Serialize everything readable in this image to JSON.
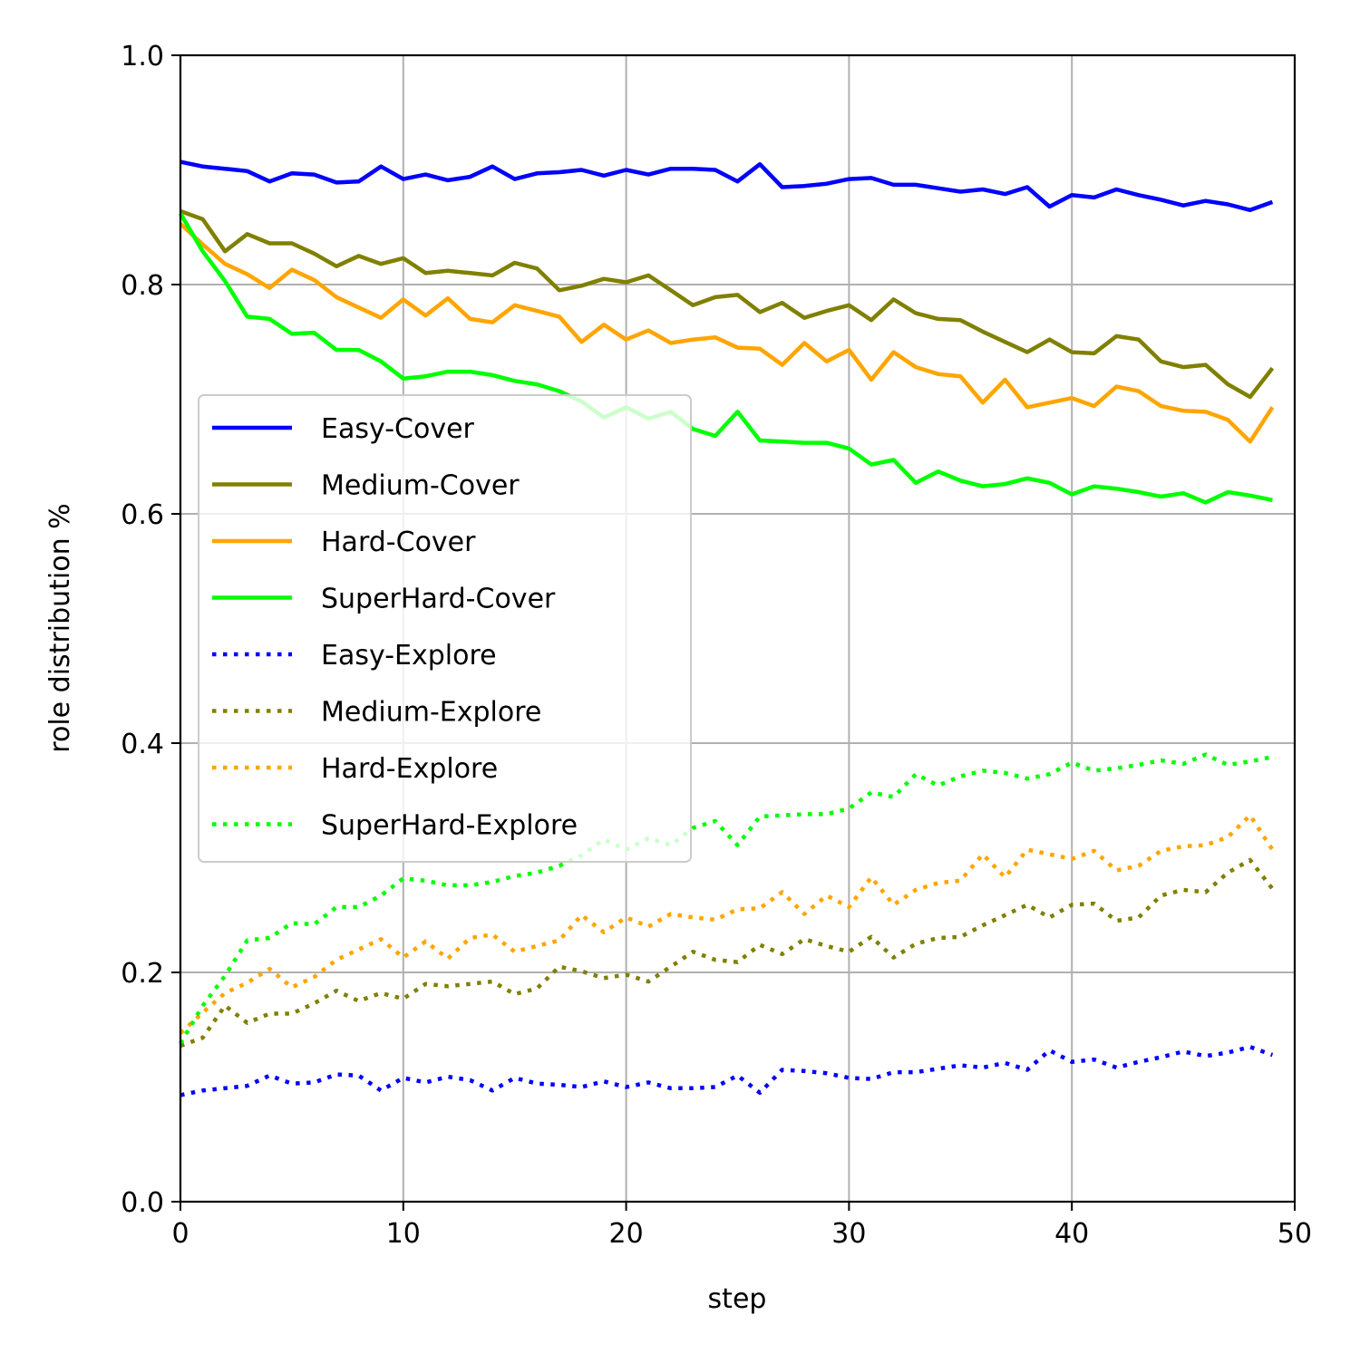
{
  "chart_data": {
    "type": "line",
    "title": "",
    "xlabel": "step",
    "ylabel": "role distribution %",
    "xlim": [
      0,
      50
    ],
    "ylim": [
      0.0,
      1.0
    ],
    "xticks": [
      "0",
      "10",
      "20",
      "30",
      "40",
      "50"
    ],
    "yticks": [
      "0.0",
      "0.2",
      "0.4",
      "0.6",
      "0.8",
      "1.0"
    ],
    "grid": true,
    "legend_position": "center-left",
    "x": [
      0,
      1,
      2,
      3,
      4,
      5,
      6,
      7,
      8,
      9,
      10,
      11,
      12,
      13,
      14,
      15,
      16,
      17,
      18,
      19,
      20,
      21,
      22,
      23,
      24,
      25,
      26,
      27,
      28,
      29,
      30,
      31,
      32,
      33,
      34,
      35,
      36,
      37,
      38,
      39,
      40,
      41,
      42,
      43,
      44,
      45,
      46,
      47,
      48,
      49
    ],
    "series": [
      {
        "name": "Easy-Cover",
        "color": "#0000ff",
        "style": "solid",
        "values": [
          0.907,
          0.903,
          0.901,
          0.899,
          0.89,
          0.897,
          0.896,
          0.889,
          0.89,
          0.903,
          0.892,
          0.896,
          0.891,
          0.894,
          0.903,
          0.892,
          0.897,
          0.898,
          0.9,
          0.895,
          0.9,
          0.896,
          0.901,
          0.901,
          0.9,
          0.89,
          0.905,
          0.885,
          0.886,
          0.888,
          0.892,
          0.893,
          0.887,
          0.887,
          0.884,
          0.881,
          0.883,
          0.879,
          0.885,
          0.868,
          0.878,
          0.876,
          0.883,
          0.878,
          0.874,
          0.869,
          0.873,
          0.87,
          0.865,
          0.872
        ]
      },
      {
        "name": "Medium-Cover",
        "color": "#808000",
        "style": "solid",
        "values": [
          0.864,
          0.857,
          0.829,
          0.844,
          0.836,
          0.836,
          0.827,
          0.816,
          0.825,
          0.818,
          0.823,
          0.81,
          0.812,
          0.81,
          0.808,
          0.819,
          0.814,
          0.795,
          0.799,
          0.805,
          0.802,
          0.808,
          0.795,
          0.782,
          0.789,
          0.791,
          0.776,
          0.784,
          0.771,
          0.777,
          0.782,
          0.769,
          0.787,
          0.775,
          0.77,
          0.769,
          0.759,
          0.75,
          0.741,
          0.752,
          0.741,
          0.74,
          0.755,
          0.752,
          0.733,
          0.728,
          0.73,
          0.713,
          0.702,
          0.727
        ]
      },
      {
        "name": "Hard-Cover",
        "color": "#ffa500",
        "style": "solid",
        "values": [
          0.853,
          0.835,
          0.818,
          0.809,
          0.797,
          0.813,
          0.804,
          0.789,
          0.78,
          0.771,
          0.787,
          0.773,
          0.788,
          0.77,
          0.767,
          0.782,
          0.777,
          0.772,
          0.75,
          0.765,
          0.752,
          0.76,
          0.749,
          0.752,
          0.754,
          0.745,
          0.744,
          0.73,
          0.749,
          0.733,
          0.743,
          0.717,
          0.741,
          0.728,
          0.722,
          0.72,
          0.697,
          0.717,
          0.693,
          0.697,
          0.701,
          0.694,
          0.711,
          0.707,
          0.694,
          0.69,
          0.689,
          0.682,
          0.663,
          0.693
        ]
      },
      {
        "name": "SuperHard-Cover",
        "color": "#00ff00",
        "style": "solid",
        "values": [
          0.862,
          0.829,
          0.803,
          0.772,
          0.77,
          0.757,
          0.758,
          0.743,
          0.743,
          0.733,
          0.718,
          0.72,
          0.724,
          0.724,
          0.721,
          0.716,
          0.713,
          0.707,
          0.698,
          0.684,
          0.693,
          0.683,
          0.689,
          0.674,
          0.668,
          0.689,
          0.664,
          0.663,
          0.662,
          0.662,
          0.657,
          0.643,
          0.647,
          0.627,
          0.637,
          0.629,
          0.624,
          0.626,
          0.631,
          0.627,
          0.617,
          0.624,
          0.622,
          0.619,
          0.615,
          0.618,
          0.61,
          0.619,
          0.616,
          0.612
        ]
      },
      {
        "name": "Easy-Explore",
        "color": "#0000ff",
        "style": "dotted",
        "values": [
          0.093,
          0.097,
          0.099,
          0.101,
          0.11,
          0.103,
          0.104,
          0.111,
          0.11,
          0.097,
          0.108,
          0.104,
          0.109,
          0.106,
          0.097,
          0.108,
          0.103,
          0.102,
          0.1,
          0.105,
          0.1,
          0.104,
          0.099,
          0.099,
          0.1,
          0.11,
          0.095,
          0.115,
          0.114,
          0.112,
          0.108,
          0.107,
          0.113,
          0.113,
          0.116,
          0.119,
          0.117,
          0.121,
          0.115,
          0.132,
          0.122,
          0.124,
          0.117,
          0.122,
          0.126,
          0.131,
          0.127,
          0.13,
          0.135,
          0.128
        ]
      },
      {
        "name": "Medium-Explore",
        "color": "#808000",
        "style": "dotted",
        "values": [
          0.136,
          0.143,
          0.171,
          0.156,
          0.164,
          0.164,
          0.173,
          0.184,
          0.175,
          0.182,
          0.177,
          0.19,
          0.188,
          0.19,
          0.192,
          0.181,
          0.186,
          0.205,
          0.201,
          0.195,
          0.198,
          0.192,
          0.205,
          0.218,
          0.211,
          0.209,
          0.224,
          0.216,
          0.229,
          0.223,
          0.218,
          0.231,
          0.213,
          0.225,
          0.23,
          0.231,
          0.241,
          0.25,
          0.259,
          0.248,
          0.259,
          0.26,
          0.245,
          0.248,
          0.267,
          0.272,
          0.27,
          0.287,
          0.298,
          0.273
        ]
      },
      {
        "name": "Hard-Explore",
        "color": "#ffa500",
        "style": "dotted",
        "values": [
          0.147,
          0.165,
          0.182,
          0.191,
          0.203,
          0.187,
          0.196,
          0.211,
          0.22,
          0.229,
          0.213,
          0.227,
          0.212,
          0.23,
          0.233,
          0.218,
          0.223,
          0.228,
          0.25,
          0.235,
          0.248,
          0.24,
          0.251,
          0.248,
          0.246,
          0.255,
          0.256,
          0.27,
          0.251,
          0.267,
          0.257,
          0.283,
          0.259,
          0.272,
          0.278,
          0.28,
          0.303,
          0.283,
          0.307,
          0.303,
          0.299,
          0.306,
          0.289,
          0.293,
          0.306,
          0.31,
          0.311,
          0.318,
          0.337,
          0.307
        ]
      },
      {
        "name": "SuperHard-Explore",
        "color": "#00ff00",
        "style": "dotted",
        "values": [
          0.138,
          0.171,
          0.197,
          0.228,
          0.23,
          0.243,
          0.242,
          0.257,
          0.257,
          0.267,
          0.282,
          0.28,
          0.276,
          0.276,
          0.279,
          0.284,
          0.287,
          0.293,
          0.302,
          0.316,
          0.307,
          0.317,
          0.311,
          0.326,
          0.332,
          0.311,
          0.336,
          0.337,
          0.338,
          0.338,
          0.343,
          0.357,
          0.353,
          0.373,
          0.363,
          0.371,
          0.376,
          0.374,
          0.369,
          0.373,
          0.383,
          0.376,
          0.378,
          0.381,
          0.385,
          0.382,
          0.39,
          0.381,
          0.384,
          0.388
        ]
      }
    ]
  }
}
